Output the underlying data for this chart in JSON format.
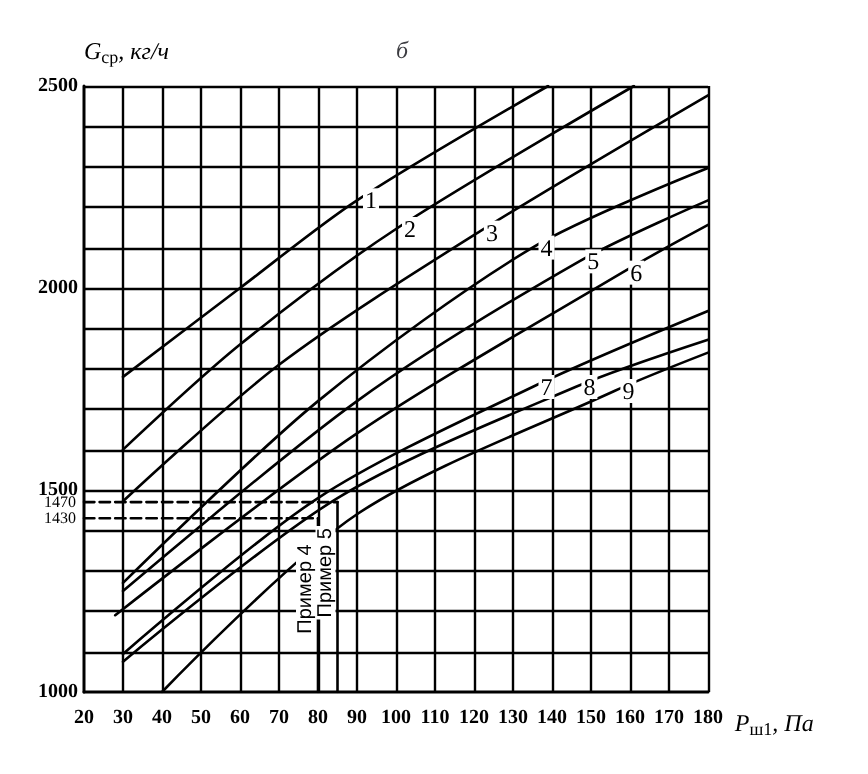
{
  "chart_data": {
    "type": "line",
    "title": "б",
    "ylabel": "G$_{ср}$, кг/ч",
    "xlabel": "P$_{ш1}$, Па",
    "xlim": [
      20,
      180
    ],
    "xticks": [
      20,
      30,
      40,
      50,
      60,
      70,
      80,
      90,
      100,
      110,
      120,
      130,
      140,
      150,
      160,
      170,
      180
    ],
    "ylim": [
      1000,
      2500
    ],
    "yticks": [
      1000,
      {
        "value": 1100,
        "label": null
      },
      {
        "value": 1200,
        "label": null
      },
      {
        "value": 1300,
        "label": null
      },
      {
        "value": 1400,
        "label": null
      },
      1500,
      {
        "value": 1600,
        "label": null
      },
      {
        "value": 1700,
        "label": null
      },
      {
        "value": 1800,
        "label": null
      },
      {
        "value": 1900,
        "label": null
      },
      2000,
      {
        "value": 2100,
        "label": null
      },
      {
        "value": 2200,
        "label": null
      },
      {
        "value": 2300,
        "label": null
      },
      {
        "value": 2400,
        "label": null
      },
      2500
    ],
    "grid": true,
    "legend": false,
    "marker": "none",
    "line_style": "solid",
    "series": [
      {
        "name": "1",
        "color": "#000000",
        "x": [
          30,
          60,
          90,
          139
        ],
        "values": [
          1780,
          2000,
          2217,
          2500
        ]
      },
      {
        "name": "2",
        "color": "#000000",
        "x": [
          30,
          60,
          100,
          161
        ],
        "values": [
          1600,
          1860,
          2146,
          2500
        ]
      },
      {
        "name": "3",
        "color": "#000000",
        "x": [
          30,
          70,
          121,
          180
        ],
        "values": [
          1472,
          1810,
          2137,
          2477
        ]
      },
      {
        "name": "4",
        "color": "#000000",
        "x": [
          30,
          80,
          135,
          180
        ],
        "values": [
          1270,
          1720,
          2100,
          2297
        ]
      },
      {
        "name": "5",
        "color": "#000000",
        "x": [
          30,
          90,
          147,
          180
        ],
        "values": [
          1250,
          1720,
          2066,
          2217
        ]
      },
      {
        "name": "6",
        "color": "#000000",
        "x": [
          28,
          90,
          158,
          180
        ],
        "values": [
          1190,
          1640,
          2038,
          2156
        ]
      },
      {
        "name": "7",
        "color": "#000000",
        "x": [
          30,
          80,
          135,
          180
        ],
        "values": [
          1094,
          1480,
          1755,
          1943
        ]
      },
      {
        "name": "8",
        "color": "#000000",
        "x": [
          30,
          85,
          146,
          180
        ],
        "values": [
          1075,
          1480,
          1755,
          1872
        ]
      },
      {
        "name": "9",
        "color": "#000000",
        "x": [
          40,
          90,
          156,
          180
        ],
        "values": [
          1000,
          1440,
          1745,
          1840
        ]
      },
      {
        "color": "#000000",
        "line_style": "dashed",
        "x": [
          20,
          85
        ],
        "values": [
          1470,
          1470
        ],
        "value_labels": [
          "1470",
          null
        ]
      },
      {
        "color": "#000000",
        "line_style": "dashed",
        "x": [
          20,
          80
        ],
        "values": [
          1430,
          1430
        ],
        "value_labels": [
          "1430",
          null
        ]
      },
      {
        "name": "Пример 4",
        "color": "#000000",
        "x": [
          80,
          80
        ],
        "values": [
          1000,
          1430
        ]
      },
      {
        "name": "Пример 5",
        "color": "#000000",
        "x": [
          85,
          85
        ],
        "values": [
          1000,
          1470
        ]
      }
    ]
  }
}
